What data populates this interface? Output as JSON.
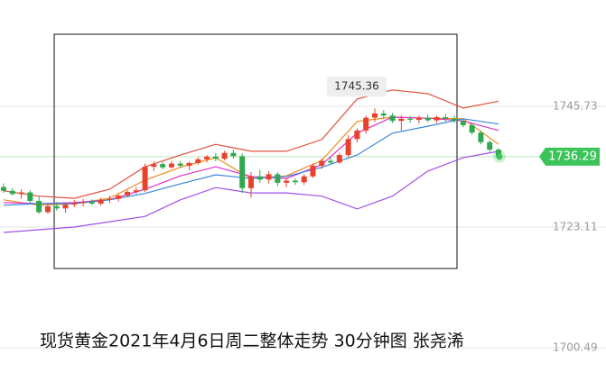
{
  "chart_data": {
    "type": "candlestick",
    "title": "现货黄金2021年4月6日周二整体走势 30分钟图 张尧浠",
    "ylim": [
      1695.76,
      1765.65
    ],
    "yticks": [
      1745.73,
      1723.11,
      1700.49
    ],
    "grid": true,
    "up_color": "#e8412c",
    "down_color": "#2fa84f",
    "high_label": 1745.36,
    "last_price": 1736.29,
    "last_color": "#3cc45a",
    "ohlc": [
      [
        1730.6,
        1731.3,
        1729.5,
        1729.9
      ],
      [
        1729.9,
        1730.4,
        1729.0,
        1729.3
      ],
      [
        1729.3,
        1730.2,
        1728.4,
        1729.6
      ],
      [
        1729.6,
        1730.0,
        1727.6,
        1728.0
      ],
      [
        1728.0,
        1728.8,
        1725.6,
        1725.9
      ],
      [
        1725.9,
        1727.4,
        1725.6,
        1727.0
      ],
      [
        1727.0,
        1727.8,
        1726.2,
        1726.6
      ],
      [
        1726.6,
        1727.6,
        1725.8,
        1727.3
      ],
      [
        1727.3,
        1728.2,
        1726.8,
        1727.6
      ],
      [
        1727.6,
        1728.4,
        1727.0,
        1727.8
      ],
      [
        1727.8,
        1728.3,
        1727.2,
        1727.5
      ],
      [
        1727.5,
        1728.6,
        1727.1,
        1728.2
      ],
      [
        1728.2,
        1729.0,
        1727.6,
        1728.4
      ],
      [
        1728.4,
        1729.2,
        1727.9,
        1729.0
      ],
      [
        1729.0,
        1730.0,
        1728.7,
        1729.7
      ],
      [
        1729.7,
        1730.6,
        1729.3,
        1730.0
      ],
      [
        1730.0,
        1735.0,
        1729.7,
        1734.4
      ],
      [
        1734.4,
        1735.4,
        1733.6,
        1734.9
      ],
      [
        1734.9,
        1735.3,
        1733.9,
        1734.3
      ],
      [
        1734.3,
        1735.5,
        1734.0,
        1735.0
      ],
      [
        1735.0,
        1735.5,
        1734.2,
        1734.6
      ],
      [
        1734.6,
        1735.4,
        1733.8,
        1735.1
      ],
      [
        1735.1,
        1736.2,
        1734.8,
        1735.8
      ],
      [
        1735.8,
        1736.6,
        1735.2,
        1736.3
      ],
      [
        1736.3,
        1737.0,
        1735.4,
        1735.9
      ],
      [
        1735.9,
        1737.4,
        1735.6,
        1737.0
      ],
      [
        1737.0,
        1737.6,
        1735.9,
        1736.4
      ],
      [
        1736.4,
        1736.9,
        1729.5,
        1730.4
      ],
      [
        1730.4,
        1733.4,
        1728.6,
        1732.6
      ],
      [
        1732.6,
        1733.8,
        1731.4,
        1732.0
      ],
      [
        1732.0,
        1733.6,
        1731.3,
        1733.0
      ],
      [
        1733.0,
        1733.4,
        1730.8,
        1731.4
      ],
      [
        1731.4,
        1732.4,
        1730.6,
        1731.8
      ],
      [
        1731.8,
        1732.2,
        1731.0,
        1731.5
      ],
      [
        1731.5,
        1733.0,
        1731.0,
        1732.6
      ],
      [
        1732.6,
        1735.0,
        1732.3,
        1734.6
      ],
      [
        1734.6,
        1736.0,
        1734.0,
        1735.5
      ],
      [
        1735.5,
        1736.2,
        1734.8,
        1735.2
      ],
      [
        1735.2,
        1737.0,
        1735.0,
        1736.6
      ],
      [
        1736.6,
        1740.3,
        1736.2,
        1739.6
      ],
      [
        1739.6,
        1741.6,
        1739.0,
        1741.2
      ],
      [
        1741.2,
        1744.0,
        1740.6,
        1743.6
      ],
      [
        1743.6,
        1745.36,
        1742.8,
        1744.4
      ],
      [
        1744.4,
        1745.0,
        1743.4,
        1744.0
      ],
      [
        1744.0,
        1744.5,
        1742.6,
        1743.0
      ],
      [
        1743.0,
        1744.0,
        1741.2,
        1743.4
      ],
      [
        1743.4,
        1743.9,
        1742.6,
        1743.2
      ],
      [
        1743.2,
        1744.0,
        1742.5,
        1743.6
      ],
      [
        1743.6,
        1744.2,
        1742.8,
        1743.1
      ],
      [
        1743.1,
        1744.0,
        1742.6,
        1743.7
      ],
      [
        1743.7,
        1744.3,
        1742.9,
        1743.4
      ],
      [
        1743.4,
        1744.0,
        1742.6,
        1743.0
      ],
      [
        1743.0,
        1743.4,
        1741.8,
        1742.2
      ],
      [
        1742.2,
        1742.7,
        1740.4,
        1740.8
      ],
      [
        1740.8,
        1741.2,
        1738.6,
        1739.0
      ],
      [
        1739.0,
        1739.4,
        1737.2,
        1737.6
      ],
      [
        1737.6,
        1737.9,
        1736.1,
        1736.29
      ]
    ],
    "x": [
      0,
      4,
      8,
      12,
      16,
      20,
      24,
      28,
      32,
      36,
      40,
      44,
      48,
      52,
      56
    ],
    "series": [
      {
        "color": "#e0503c",
        "values": [
          1729.9,
          1728.9,
          1728.5,
          1730.2,
          1734.4,
          1736.6,
          1738.6,
          1737.3,
          1737.3,
          1739.5,
          1747.1,
          1748.8,
          1748.1,
          1745.4,
          1746.7
        ]
      },
      {
        "color": "#f08a1c",
        "values": [
          1728.2,
          1727.2,
          1727.5,
          1728.5,
          1731.9,
          1734.3,
          1736.1,
          1732.2,
          1732.7,
          1735.6,
          1742.9,
          1743.7,
          1743.5,
          1743.4,
          1738.6
        ]
      },
      {
        "color": "#e030c8",
        "values": [
          1727.7,
          1727.5,
          1727.7,
          1728.2,
          1730.2,
          1732.7,
          1734.4,
          1732.6,
          1732.2,
          1734.8,
          1740.7,
          1743.7,
          1743.5,
          1743.0,
          1741.2
        ]
      },
      {
        "color": "#3a86e0",
        "values": [
          1727.2,
          1727.5,
          1727.5,
          1728.2,
          1729.4,
          1731.2,
          1732.9,
          1732.2,
          1732.6,
          1734.3,
          1736.6,
          1740.7,
          1742.0,
          1743.4,
          1742.4
        ]
      },
      {
        "color": "#a050e8",
        "values": [
          1722.1,
          1722.6,
          1723.1,
          1724.1,
          1725.1,
          1728.2,
          1730.5,
          1729.5,
          1729.5,
          1728.9,
          1726.5,
          1728.9,
          1733.6,
          1736.1,
          1737.3
        ]
      }
    ]
  }
}
